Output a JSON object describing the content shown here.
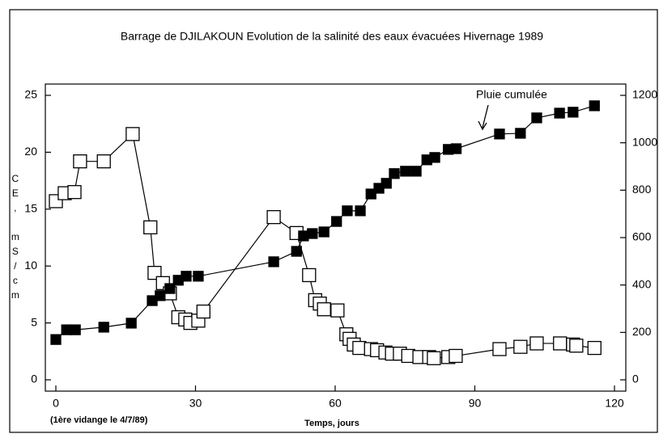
{
  "chart_data": {
    "type": "scatter",
    "title": "Barrage de DJILAKOUN  Evolution de la salinité des eaux évacuées Hivernage 1989",
    "ylabel": "CE, mS/cm",
    "xlabel": "Temps, jours",
    "note": "(1ère vidange le 4/7/89)",
    "xlim": [
      0,
      120
    ],
    "xticks": [
      0,
      30,
      60,
      90,
      120
    ],
    "ylim": [
      0,
      25
    ],
    "yticks": [
      0,
      5,
      10,
      15,
      20,
      25
    ],
    "y2lim": [
      0,
      1200
    ],
    "y2ticks": [
      0,
      200,
      400,
      600,
      800,
      1000,
      1200
    ],
    "series": [
      {
        "marker": "open-square",
        "color": "#000000",
        "x": [
          0,
          1.9,
          4,
          5.2,
          10.3,
          16.5,
          20.3,
          21.2,
          23,
          24.5,
          26.3,
          27.8,
          28.9,
          30.6,
          31.7,
          46.8,
          51.7,
          54.4,
          55.7,
          56.7,
          57.6,
          60.5,
          62.4,
          63.1,
          64,
          65.2,
          67.7,
          69,
          70.8,
          72.2,
          73.9,
          75.7,
          78.1,
          80.2,
          81.2,
          84.3,
          85.9,
          95.3,
          99.8,
          103.3,
          108.3,
          111.1,
          111.8,
          115.7
        ],
        "values": [
          15.7,
          16.4,
          16.5,
          19.2,
          19.2,
          21.6,
          13.4,
          9.4,
          8.5,
          7.6,
          5.5,
          5.3,
          5.0,
          5.2,
          6.0,
          14.3,
          12.9,
          9.2,
          7.0,
          6.7,
          6.2,
          6.1,
          4.0,
          3.6,
          3.1,
          2.8,
          2.7,
          2.6,
          2.4,
          2.3,
          2.3,
          2.1,
          2.0,
          2.0,
          1.9,
          2.0,
          2.1,
          2.7,
          2.9,
          3.2,
          3.2,
          3.1,
          3.0,
          2.8
        ]
      },
      {
        "name": "Pluie cumulée",
        "axis": "y2",
        "marker": "filled-square",
        "color": "#000000",
        "x": [
          0,
          2.3,
          4.2,
          10.3,
          16.2,
          20.7,
          22.4,
          24.5,
          26.3,
          28,
          30.6,
          46.8,
          51.7,
          53.2,
          55.1,
          57.6,
          60.3,
          62.6,
          65.4,
          67.7,
          69.4,
          71,
          72.7,
          75.1,
          77.4,
          79.7,
          81.4,
          84.3,
          86,
          95.3,
          99.8,
          103.3,
          108.2,
          111.1,
          115.7
        ],
        "values": [
          170,
          211,
          211,
          222,
          239,
          334,
          355,
          385,
          420,
          437,
          437,
          498,
          542,
          607,
          617,
          624,
          668,
          713,
          713,
          784,
          808,
          829,
          870,
          880,
          880,
          928,
          938,
          972,
          975,
          1037,
          1040,
          1105,
          1125,
          1129,
          1156
        ]
      }
    ]
  }
}
